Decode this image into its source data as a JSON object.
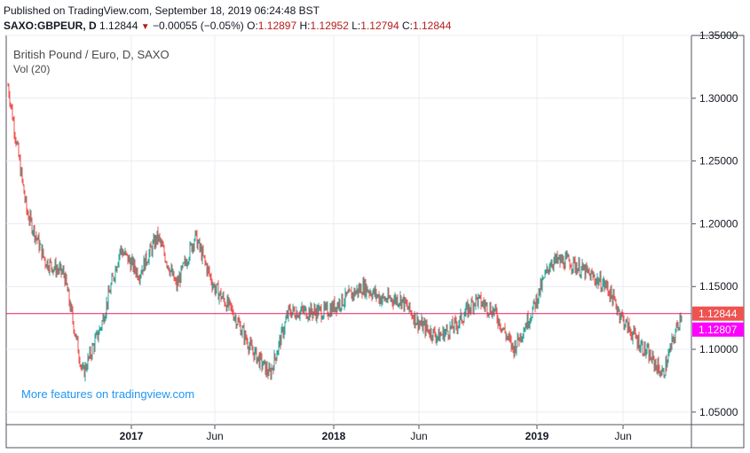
{
  "header": {
    "published": "Published on TradingView.com, September 18, 2019 06:24:48 BST",
    "symbol": "SAXO:GBPEUR, D",
    "last": "1.12844",
    "change": "−0.00055 (−0.05%)",
    "o_label": "O:",
    "o_value": "1.12897",
    "h_label": "H:",
    "h_value": "1.12952",
    "l_label": "L:",
    "l_value": "1.12794",
    "c_label": "C:",
    "c_value": "1.12844"
  },
  "legend": {
    "title": "British Pound / Euro, D, SAXO",
    "volume": "Vol (20)"
  },
  "promo": "More features on tradingview.com",
  "colors": {
    "up": "#26a69a",
    "down": "#ef5350",
    "grid": "#e9ecf2",
    "price_line": "#e91e63",
    "badge_close": "#ef5350",
    "badge_alt": "#ff00ff"
  },
  "chart_data": {
    "type": "candlestick",
    "ylim": [
      1.04,
      1.35
    ],
    "y_ticks": [
      "1.35000",
      "1.30000",
      "1.25000",
      "1.20000",
      "1.15000",
      "1.10000",
      "1.05000"
    ],
    "x_ticks": [
      "2017",
      "Jun",
      "2018",
      "Jun",
      "2019",
      "Jun"
    ],
    "current_price": 1.12844,
    "price_labels": [
      "1.12844",
      "1.12807"
    ],
    "grid": true,
    "series": [
      {
        "x": [
          "2016-09",
          "2016-10",
          "2016-11",
          "2016-12",
          "2017-01",
          "2017-02",
          "2017-03",
          "2017-04",
          "2017-05",
          "2017-06",
          "2017-07",
          "2017-08",
          "2017-09",
          "2017-10",
          "2017-11",
          "2017-12",
          "2018-01",
          "2018-02",
          "2018-03",
          "2018-04",
          "2018-05",
          "2018-06",
          "2018-07",
          "2018-08",
          "2018-09",
          "2018-10",
          "2018-11",
          "2018-12",
          "2019-01",
          "2019-02",
          "2019-03",
          "2019-04",
          "2019-05",
          "2019-06",
          "2019-07",
          "2019-08",
          "2019-09"
        ],
        "values": [
          1.31,
          1.21,
          1.17,
          1.16,
          1.08,
          1.12,
          1.18,
          1.16,
          1.19,
          1.15,
          1.19,
          1.15,
          1.13,
          1.1,
          1.08,
          1.13,
          1.13,
          1.13,
          1.14,
          1.15,
          1.14,
          1.14,
          1.12,
          1.11,
          1.12,
          1.14,
          1.13,
          1.1,
          1.13,
          1.17,
          1.17,
          1.16,
          1.15,
          1.12,
          1.1,
          1.08,
          1.13
        ]
      }
    ]
  }
}
